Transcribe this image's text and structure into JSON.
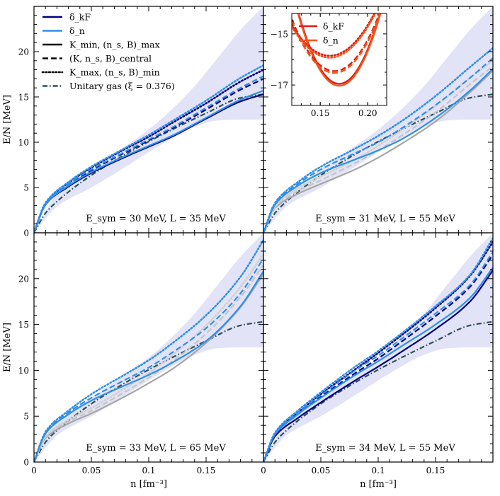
{
  "chart_data": {
    "type": "line",
    "layout": "2x2 grid with shared axes",
    "xlabel": "n [fm⁻³]",
    "ylabel": "E/N [MeV]",
    "xlim": [
      0,
      0.2
    ],
    "ylim": [
      0,
      25
    ],
    "xticks": [
      "0",
      "0.05",
      "0.1",
      "0.15"
    ],
    "yticks": [
      "0",
      "5",
      "10",
      "15",
      "20"
    ],
    "legend": [
      {
        "label": "δ_kF",
        "style": "solid",
        "color": "#00007a"
      },
      {
        "label": "δ_n",
        "style": "solid",
        "color": "#2f8fe8"
      },
      {
        "label": "K_min, (n_s, B)_max",
        "style": "solid",
        "color": "#000000"
      },
      {
        "label": "(K, n_s, B)_central",
        "style": "dashed",
        "color": "#000000"
      },
      {
        "label": "K_max, (n_s, B)_min",
        "style": "dotted",
        "color": "#000000"
      },
      {
        "label": "Unitary gas (ξ = 0.376)",
        "style": "dashdot",
        "color": "#2f4f55"
      }
    ],
    "band": {
      "name": "uncertainty band",
      "color": "#e2e3f7",
      "x": [
        0,
        0.02,
        0.05,
        0.08,
        0.1,
        0.12,
        0.14,
        0.16,
        0.18,
        0.2
      ],
      "lower": [
        0,
        2.9,
        5.0,
        7.3,
        8.9,
        10.4,
        11.7,
        12.4,
        12.5,
        12.5
      ],
      "upper": [
        0,
        4.3,
        7.0,
        9.6,
        11.4,
        13.6,
        16.2,
        19.3,
        22.4,
        25.0
      ]
    },
    "unitary_gas": {
      "x": [
        0,
        0.01,
        0.02,
        0.05,
        0.08,
        0.1,
        0.12,
        0.15,
        0.18,
        0.2
      ],
      "y": [
        0,
        2.17,
        3.45,
        6.35,
        8.68,
        10.07,
        11.37,
        13.2,
        14.9,
        15.3
      ]
    },
    "panels": [
      {
        "label": "E_sym = 30 MeV, L = 35 MeV",
        "series": [
          {
            "name": "δ_kF K_min",
            "color": "#00007a",
            "style": "solid",
            "x": [
              0,
              0.01,
              0.03,
              0.05,
              0.08,
              0.1,
              0.12,
              0.15,
              0.18,
              0.2
            ],
            "y": [
              0,
              3.1,
              5.1,
              6.6,
              8.4,
              9.5,
              10.6,
              12.6,
              14.5,
              15.3
            ]
          },
          {
            "name": "δ_kF central",
            "color": "#00007a",
            "style": "dashed",
            "x": [
              0,
              0.01,
              0.03,
              0.05,
              0.08,
              0.1,
              0.12,
              0.15,
              0.18,
              0.2
            ],
            "y": [
              0,
              3.2,
              5.3,
              6.9,
              8.9,
              10.2,
              11.5,
              13.6,
              15.8,
              17.0
            ]
          },
          {
            "name": "δ_kF K_max",
            "color": "#00007a",
            "style": "dotted",
            "x": [
              0,
              0.01,
              0.03,
              0.05,
              0.08,
              0.1,
              0.12,
              0.15,
              0.18,
              0.2
            ],
            "y": [
              0,
              3.3,
              5.5,
              7.2,
              9.3,
              10.6,
              12.1,
              14.3,
              16.7,
              18.0
            ]
          },
          {
            "name": "δ_n K_min",
            "color": "#2f8fe8",
            "style": "solid",
            "x": [
              0,
              0.01,
              0.03,
              0.05,
              0.08,
              0.1,
              0.12,
              0.15,
              0.18,
              0.2
            ],
            "y": [
              0,
              3.1,
              5.2,
              6.7,
              8.5,
              9.6,
              10.7,
              12.7,
              14.7,
              15.7
            ]
          },
          {
            "name": "δ_n central",
            "color": "#2f8fe8",
            "style": "dashed",
            "x": [
              0,
              0.01,
              0.03,
              0.05,
              0.08,
              0.1,
              0.12,
              0.15,
              0.18,
              0.2
            ],
            "y": [
              0,
              3.2,
              5.4,
              7.0,
              9.0,
              10.3,
              11.6,
              13.8,
              16.0,
              17.3
            ]
          },
          {
            "name": "δ_n K_max",
            "color": "#2f8fe8",
            "style": "dotted",
            "x": [
              0,
              0.01,
              0.03,
              0.05,
              0.08,
              0.1,
              0.12,
              0.15,
              0.18,
              0.2
            ],
            "y": [
              0,
              3.3,
              5.6,
              7.3,
              9.4,
              10.8,
              12.3,
              14.6,
              17.1,
              18.5
            ]
          }
        ]
      },
      {
        "label": "E_sym = 31 MeV, L = 55 MeV",
        "series": [
          {
            "name": "gray K_min",
            "color": "#a6a6a6",
            "style": "solid",
            "x": [
              0,
              0.01,
              0.03,
              0.05,
              0.08,
              0.1,
              0.12,
              0.15,
              0.18,
              0.2
            ],
            "y": [
              0,
              2.7,
              4.3,
              5.4,
              7.0,
              8.3,
              9.8,
              12.3,
              15.5,
              17.9
            ]
          },
          {
            "name": "gray central",
            "color": "#c4c4c4",
            "style": "dashed",
            "x": [
              0,
              0.01,
              0.03,
              0.05,
              0.08,
              0.1,
              0.12,
              0.15,
              0.18,
              0.2
            ],
            "y": [
              0,
              2.8,
              4.6,
              5.8,
              7.7,
              9.1,
              10.7,
              13.3,
              16.4,
              18.4
            ]
          },
          {
            "name": "gray K_max",
            "color": "#d0d0d0",
            "style": "dotted",
            "x": [
              0,
              0.01,
              0.03,
              0.05,
              0.08,
              0.1,
              0.12,
              0.15,
              0.18,
              0.2
            ],
            "y": [
              0,
              2.9,
              4.9,
              6.2,
              8.1,
              9.6,
              11.3,
              14.0,
              17.1,
              19.0
            ]
          },
          {
            "name": "δ_n K_min",
            "color": "#2f8fe8",
            "style": "solid",
            "x": [
              0,
              0.01,
              0.03,
              0.05,
              0.08,
              0.1,
              0.12,
              0.15,
              0.18,
              0.2
            ],
            "y": [
              0,
              3.1,
              5.2,
              6.6,
              8.1,
              9.1,
              10.3,
              12.7,
              15.7,
              18.1
            ]
          },
          {
            "name": "δ_n central",
            "color": "#2f8fe8",
            "style": "dashed",
            "x": [
              0,
              0.01,
              0.03,
              0.05,
              0.08,
              0.1,
              0.12,
              0.15,
              0.18,
              0.2
            ],
            "y": [
              0,
              3.2,
              5.4,
              7.0,
              8.8,
              10.0,
              11.5,
              14.1,
              17.1,
              19.3
            ]
          },
          {
            "name": "δ_n K_max",
            "color": "#2f8fe8",
            "style": "dotted",
            "x": [
              0,
              0.01,
              0.03,
              0.05,
              0.08,
              0.1,
              0.12,
              0.15,
              0.18,
              0.2
            ],
            "y": [
              0,
              3.3,
              5.6,
              7.3,
              9.3,
              10.7,
              12.3,
              15.1,
              18.3,
              20.4
            ]
          }
        ],
        "inset": {
          "xlim": [
            0.12,
            0.22
          ],
          "ylim": [
            -17.8,
            -14.2
          ],
          "xticks": [
            "0.15",
            "0.20"
          ],
          "yticks": [
            "−15",
            "−17"
          ],
          "legend": [
            {
              "label": "δ_kF",
              "color": "#dc1c13"
            },
            {
              "label": "δ_n",
              "color": "#f5561b"
            }
          ],
          "curves": [
            {
              "name": "K_min",
              "style": "solid",
              "center": 0.17,
              "min": -17.0,
              "curvature": 1500
            },
            {
              "name": "central",
              "style": "dashed",
              "center": 0.165,
              "min": -16.5,
              "curvature": 1000
            },
            {
              "name": "K_max",
              "style": "dotted",
              "center": 0.16,
              "min": -15.9,
              "curvature": 750
            }
          ]
        }
      },
      {
        "label": "E_sym = 33 MeV, L = 65 MeV",
        "series": [
          {
            "name": "gray K_min",
            "color": "#a6a6a6",
            "style": "solid",
            "x": [
              0,
              0.01,
              0.03,
              0.05,
              0.08,
              0.1,
              0.12,
              0.15,
              0.18,
              0.2
            ],
            "y": [
              0,
              2.6,
              4.2,
              5.3,
              7.2,
              8.6,
              10.1,
              13.0,
              16.9,
              20.5
            ]
          },
          {
            "name": "gray central",
            "color": "#c4c4c4",
            "style": "dashed",
            "x": [
              0,
              0.01,
              0.03,
              0.05,
              0.08,
              0.1,
              0.12,
              0.15,
              0.18,
              0.2
            ],
            "y": [
              0,
              2.7,
              4.4,
              5.6,
              7.7,
              9.2,
              10.9,
              14.0,
              18.0,
              21.5
            ]
          },
          {
            "name": "gray K_max",
            "color": "#d0d0d0",
            "style": "dotted",
            "x": [
              0,
              0.01,
              0.03,
              0.05,
              0.08,
              0.1,
              0.12,
              0.15,
              0.18,
              0.2
            ],
            "y": [
              0,
              2.8,
              4.6,
              5.9,
              8.1,
              9.7,
              11.6,
              14.9,
              19.1,
              22.7
            ]
          },
          {
            "name": "δ_n K_min",
            "color": "#2f8fe8",
            "style": "solid",
            "x": [
              0,
              0.01,
              0.03,
              0.05,
              0.08,
              0.1,
              0.12,
              0.15,
              0.18,
              0.2
            ],
            "y": [
              0,
              3.1,
              5.2,
              6.7,
              8.4,
              9.5,
              10.8,
              13.2,
              17.0,
              20.8
            ]
          },
          {
            "name": "δ_n central",
            "color": "#2f8fe8",
            "style": "dashed",
            "x": [
              0,
              0.01,
              0.03,
              0.05,
              0.08,
              0.1,
              0.12,
              0.15,
              0.18,
              0.2
            ],
            "y": [
              0,
              3.2,
              5.4,
              7.0,
              9.0,
              10.3,
              11.9,
              14.6,
              18.4,
              22.2
            ]
          },
          {
            "name": "δ_n K_max",
            "color": "#2f8fe8",
            "style": "dotted",
            "x": [
              0,
              0.01,
              0.03,
              0.05,
              0.08,
              0.1,
              0.12,
              0.15,
              0.18,
              0.2
            ],
            "y": [
              0,
              3.3,
              5.6,
              7.4,
              9.6,
              11.1,
              12.9,
              16.0,
              20.2,
              24.2
            ]
          }
        ]
      },
      {
        "label": "E_sym = 34 MeV, L = 55 MeV",
        "series": [
          {
            "name": "δ_kF K_min",
            "color": "#00007a",
            "style": "solid",
            "x": [
              0,
              0.01,
              0.03,
              0.05,
              0.08,
              0.1,
              0.12,
              0.15,
              0.18,
              0.2
            ],
            "y": [
              0,
              2.8,
              4.8,
              6.5,
              8.9,
              10.4,
              12.0,
              14.5,
              17.5,
              20.9
            ]
          },
          {
            "name": "δ_kF central",
            "color": "#00007a",
            "style": "dashed",
            "x": [
              0,
              0.01,
              0.03,
              0.05,
              0.08,
              0.1,
              0.12,
              0.15,
              0.18,
              0.2
            ],
            "y": [
              0,
              3.0,
              5.2,
              7.1,
              9.7,
              11.3,
              13.1,
              15.9,
              19.1,
              22.6
            ]
          },
          {
            "name": "δ_kF K_max",
            "color": "#00007a",
            "style": "dotted",
            "x": [
              0,
              0.01,
              0.03,
              0.05,
              0.08,
              0.1,
              0.12,
              0.15,
              0.18,
              0.2
            ],
            "y": [
              0,
              3.1,
              5.4,
              7.4,
              10.1,
              11.9,
              13.8,
              16.8,
              20.3,
              24.0
            ]
          },
          {
            "name": "δ_n K_min",
            "color": "#2f8fe8",
            "style": "solid",
            "x": [
              0,
              0.01,
              0.03,
              0.05,
              0.08,
              0.1,
              0.12,
              0.15,
              0.18,
              0.2
            ],
            "y": [
              0,
              3.0,
              5.2,
              7.0,
              9.5,
              11.0,
              12.6,
              15.0,
              17.9,
              21.2
            ]
          },
          {
            "name": "δ_n central",
            "color": "#2f8fe8",
            "style": "dashed",
            "x": [
              0,
              0.01,
              0.03,
              0.05,
              0.08,
              0.1,
              0.12,
              0.15,
              0.18,
              0.2
            ],
            "y": [
              0,
              3.1,
              5.4,
              7.3,
              10.0,
              11.6,
              13.4,
              16.2,
              19.3,
              22.9
            ]
          },
          {
            "name": "δ_n K_max",
            "color": "#2f8fe8",
            "style": "dotted",
            "x": [
              0,
              0.01,
              0.03,
              0.05,
              0.08,
              0.1,
              0.12,
              0.15,
              0.18,
              0.2
            ],
            "y": [
              0,
              3.2,
              5.6,
              7.6,
              10.4,
              12.1,
              14.0,
              17.0,
              20.4,
              24.4
            ]
          }
        ]
      }
    ]
  }
}
